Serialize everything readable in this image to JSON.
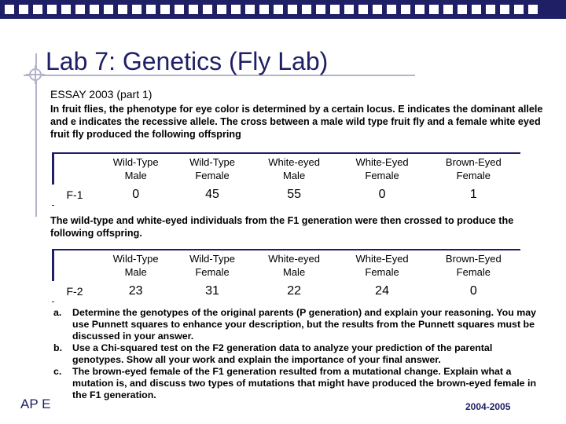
{
  "slide": {
    "title": "Lab 7: Genetics (Fly Lab)",
    "subtitle": "ESSAY 2003 (part 1)",
    "intro": "In fruit flies, the phenotype for eye color is determined by a certain locus. E indicates the dominant allele and e indicates the recessive allele. The cross between a male wild type fruit fly and a female white eyed fruit fly produced the following offspring",
    "table1": {
      "headers": [
        "Wild-Type\nMale",
        "Wild-Type\nFemale",
        "White-eyed\nMale",
        "White-Eyed\nFemale",
        "Brown-Eyed\nFemale"
      ],
      "row_label": "F-1",
      "values": [
        "0",
        "45",
        "55",
        "0",
        "1"
      ]
    },
    "middle_text": "The wild-type and white-eyed individuals from the F1 generation were then crossed to produce the following offspring.",
    "table2": {
      "headers": [
        "Wild-Type\nMale",
        "Wild-Type\nFemale",
        "White-eyed\nMale",
        "White-Eyed\nFemale",
        "Brown-Eyed\nFemale"
      ],
      "row_label": "F-2",
      "values": [
        "23",
        "31",
        "22",
        "24",
        "0"
      ]
    },
    "questions": [
      {
        "letter": "a.",
        "text": "Determine the genotypes of the original parents (P generation) and explain your reasoning. You may use Punnett squares to enhance your description, but the results from the Punnett squares must be discussed in your answer."
      },
      {
        "letter": "b.",
        "text": "Use a Chi-squared test on the F2 generation data to analyze your prediction of the parental genotypes. Show all your work and explain the importance of your final answer."
      },
      {
        "letter": "c.",
        "text": "The brown-eyed female of the F1 generation resulted from a mutational change. Explain what a mutation is, and discuss two types of mutations that might have produced the brown-eyed female in the F1 generation."
      }
    ],
    "footer_left": "AP E",
    "footer_right": "2004-2005"
  },
  "colors": {
    "accent": "#1f1f66",
    "rule": "#b3b3cc"
  }
}
